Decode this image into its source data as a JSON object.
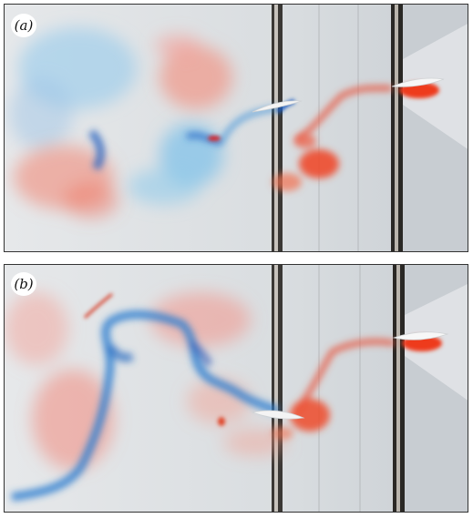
{
  "figure": {
    "panels": [
      {
        "label": "(a)"
      },
      {
        "label": "(b)"
      }
    ]
  },
  "colors": {
    "background": "#dfe2e5",
    "dye_blue": "#2f7fd0",
    "dye_blue_light": "#7fc0ea",
    "dye_red": "#f05a3a",
    "dye_red_light": "#f3a39a",
    "foil": "#f4f4f4"
  }
}
